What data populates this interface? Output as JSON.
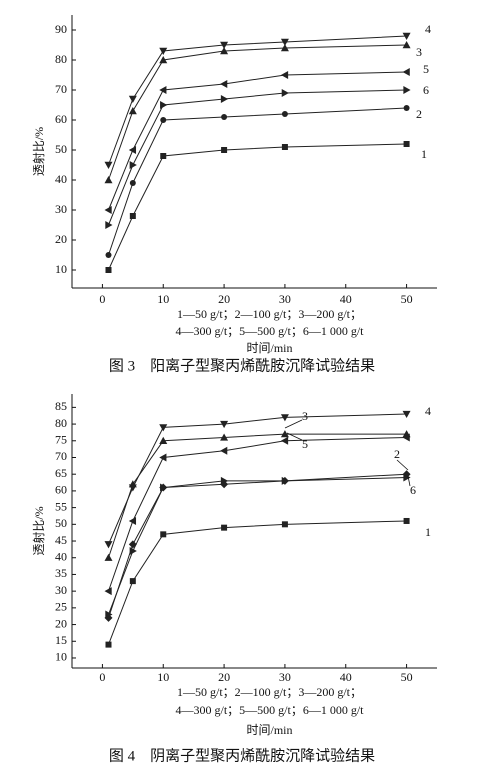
{
  "chart_data": [
    {
      "type": "line",
      "title": "图 3　阳离子型聚丙烯酰胺沉降试验结果",
      "x_label": "时间/min",
      "y_label": "透射比/%",
      "legend_text": [
        "1—50 g/t；2—100 g/t；3—200 g/t；",
        "4—300 g/t；5—500 g/t；6—1 000 g/t"
      ],
      "x": [
        1,
        5,
        10,
        20,
        30,
        50
      ],
      "xlim": [
        -5,
        55
      ],
      "xticks": [
        0,
        10,
        20,
        30,
        40,
        50
      ],
      "ylim": [
        4,
        95
      ],
      "yticks": [
        10,
        20,
        30,
        40,
        50,
        60,
        70,
        80,
        90
      ],
      "series": [
        {
          "name": "1",
          "color": "#222222",
          "values": [
            10,
            28,
            48,
            50,
            51,
            52
          ]
        },
        {
          "name": "2",
          "color": "#222222",
          "values": [
            15,
            39,
            60,
            61,
            62,
            64
          ]
        },
        {
          "name": "3",
          "color": "#222222",
          "values": [
            40,
            63,
            80,
            83,
            84,
            85
          ]
        },
        {
          "name": "4",
          "color": "#222222",
          "values": [
            45,
            67,
            83,
            85,
            86,
            88
          ]
        },
        {
          "name": "5",
          "color": "#222222",
          "values": [
            30,
            50,
            70,
            72,
            75,
            76
          ]
        },
        {
          "name": "6",
          "color": "#222222",
          "values": [
            25,
            45,
            65,
            67,
            69,
            70
          ]
        }
      ]
    },
    {
      "type": "line",
      "title": "图 4　阴离子型聚丙烯酰胺沉降试验结果",
      "x_label": "时间/min",
      "y_label": "透射比/%",
      "legend_text": [
        "1—50 g/t；2—100 g/t；3—200 g/t；",
        "4—300 g/t；5—500 g/t；6—1 000 g/t"
      ],
      "x": [
        1,
        5,
        10,
        20,
        30,
        50
      ],
      "xlim": [
        -5,
        55
      ],
      "xticks": [
        0,
        10,
        20,
        30,
        40,
        50
      ],
      "ylim": [
        7,
        89
      ],
      "yticks": [
        10,
        15,
        20,
        25,
        30,
        35,
        40,
        45,
        50,
        55,
        60,
        65,
        70,
        75,
        80,
        85
      ],
      "series": [
        {
          "name": "1",
          "color": "#222222",
          "values": [
            14,
            33,
            47,
            49,
            50,
            51
          ]
        },
        {
          "name": "2",
          "color": "#222222",
          "values": [
            22,
            44,
            61,
            62,
            63,
            65
          ]
        },
        {
          "name": "3",
          "color": "#222222",
          "values": [
            40,
            62,
            75,
            76,
            77,
            77
          ]
        },
        {
          "name": "4",
          "color": "#222222",
          "values": [
            44,
            61,
            79,
            80,
            82,
            83
          ]
        },
        {
          "name": "5",
          "color": "#222222",
          "values": [
            30,
            51,
            70,
            72,
            75,
            76
          ]
        },
        {
          "name": "6",
          "color": "#222222",
          "values": [
            23,
            42,
            61,
            63,
            63,
            64
          ]
        }
      ]
    }
  ]
}
